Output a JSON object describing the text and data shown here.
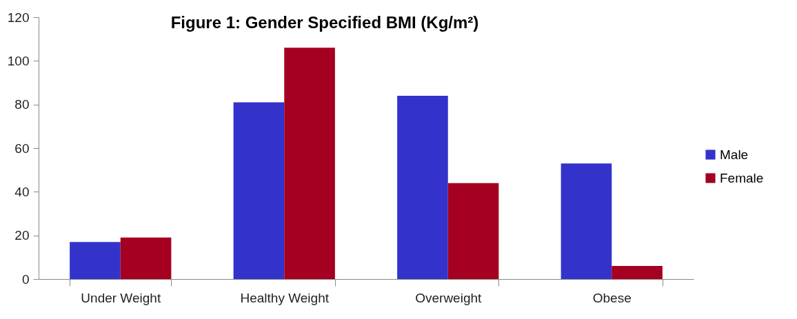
{
  "chart_data": {
    "type": "bar",
    "title": "Figure 1:  Gender Specified BMI (Kg/m²)",
    "categories": [
      "Under Weight",
      "Healthy Weight",
      "Overweight",
      "Obese"
    ],
    "series": [
      {
        "name": "Male",
        "color": "#3333cc",
        "values": [
          17,
          81,
          84,
          53
        ]
      },
      {
        "name": "Female",
        "color": "#a50021",
        "values": [
          19,
          106,
          44,
          6
        ]
      }
    ],
    "ylim": [
      0,
      120
    ],
    "yticks": [
      0,
      20,
      40,
      60,
      80,
      100,
      120
    ],
    "grid": false,
    "legend": "right"
  }
}
